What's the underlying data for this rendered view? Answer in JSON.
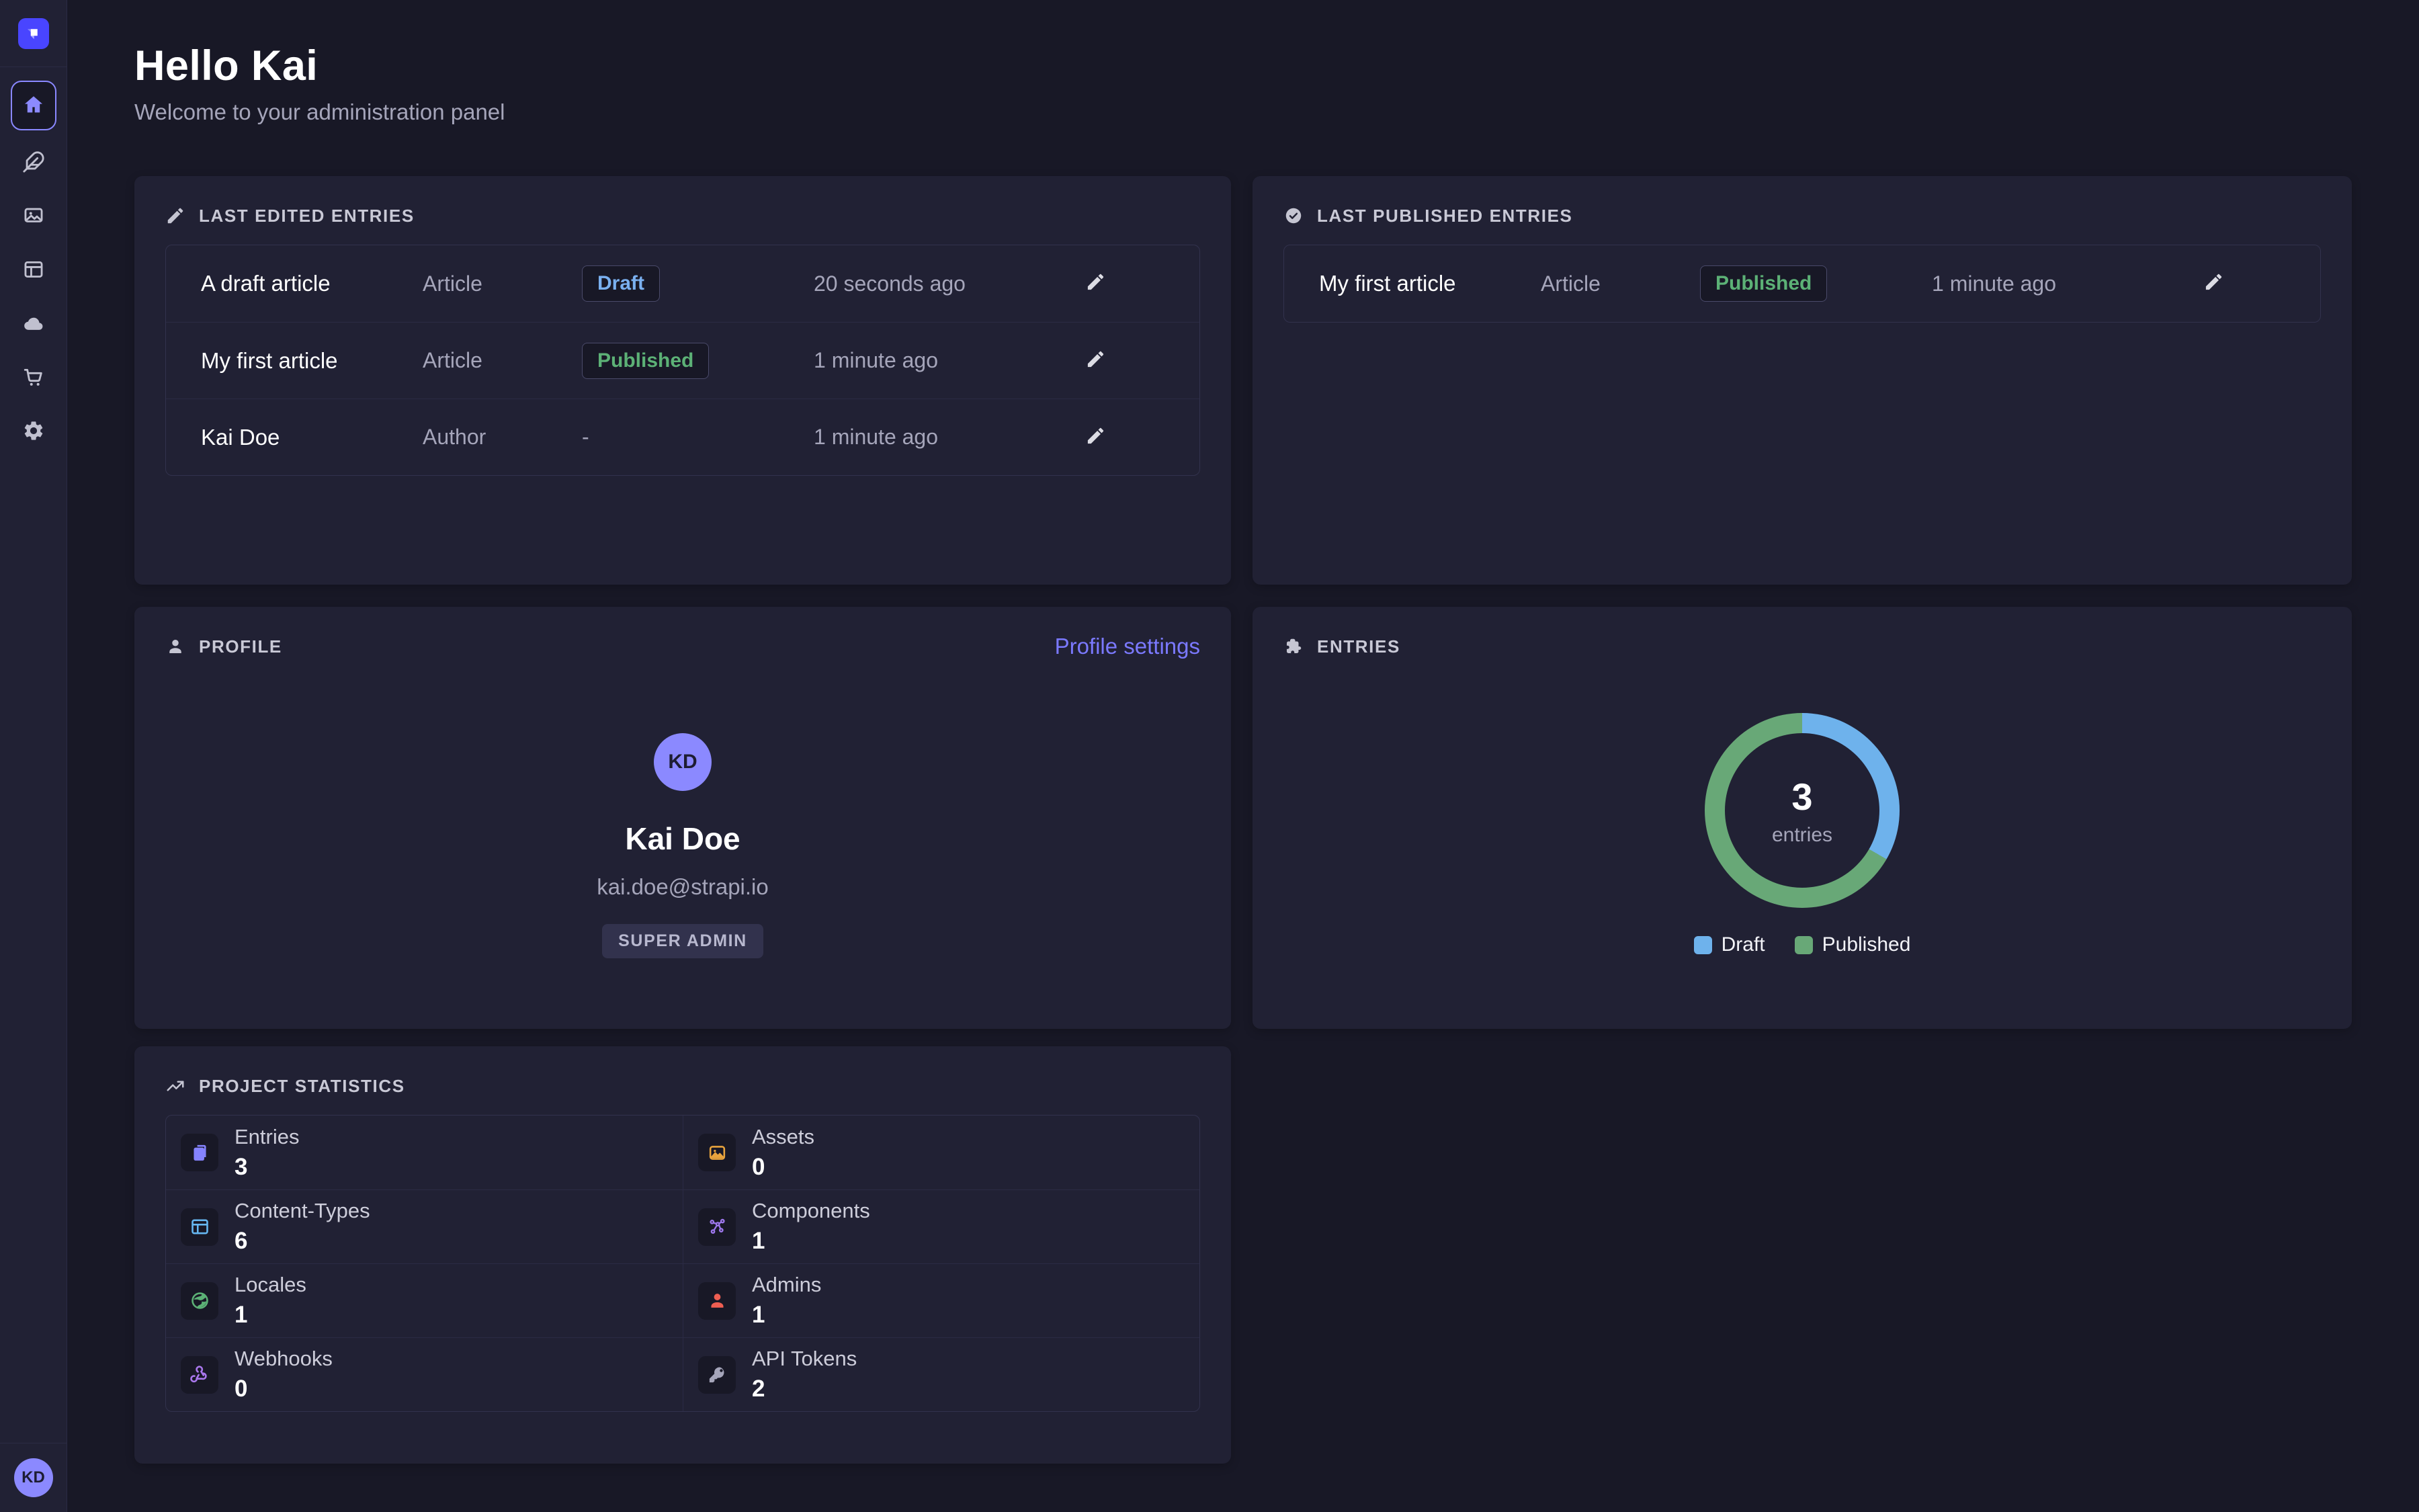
{
  "header": {
    "title": "Hello Kai",
    "subtitle": "Welcome to your administration panel"
  },
  "sidebar": {
    "logo_icon": "strapi-logo-icon",
    "user_initials": "KD",
    "items": [
      {
        "name": "nav-home",
        "icon": "home-icon",
        "state": "active"
      },
      {
        "name": "nav-content-manager",
        "icon": "feather-icon",
        "state": "default"
      },
      {
        "name": "nav-media-library",
        "icon": "images-icon",
        "state": "default"
      },
      {
        "name": "nav-content-type-builder",
        "icon": "layout-icon",
        "state": "default"
      },
      {
        "name": "nav-deploy",
        "icon": "cloud-icon",
        "state": "default"
      },
      {
        "name": "nav-marketplace",
        "icon": "cart-icon",
        "state": "default"
      },
      {
        "name": "nav-settings",
        "icon": "gear-icon",
        "state": "default"
      }
    ]
  },
  "panels": {
    "last_edited": {
      "icon": "pencil-icon",
      "title": "LAST EDITED ENTRIES",
      "rows": [
        {
          "name": "A draft article",
          "type": "Article",
          "status": "Draft",
          "status_kind": "draft",
          "time": "20 seconds ago"
        },
        {
          "name": "My first article",
          "type": "Article",
          "status": "Published",
          "status_kind": "published",
          "time": "1 minute ago"
        },
        {
          "name": "Kai Doe",
          "type": "Author",
          "status": "-",
          "status_kind": "none",
          "time": "1 minute ago"
        }
      ]
    },
    "last_published": {
      "icon": "check-circle-icon",
      "title": "LAST PUBLISHED ENTRIES",
      "rows": [
        {
          "name": "My first article",
          "type": "Article",
          "status": "Published",
          "status_kind": "published",
          "time": "1 minute ago"
        }
      ]
    },
    "profile": {
      "icon": "person-icon",
      "title": "PROFILE",
      "settings_link": "Profile settings",
      "initials": "KD",
      "name": "Kai Doe",
      "email": "kai.doe@strapi.io",
      "role": "SUPER ADMIN"
    },
    "entries": {
      "icon": "puzzle-icon",
      "title": "ENTRIES",
      "legend": [
        {
          "label": "Draft",
          "color": "#6eb2ec"
        },
        {
          "label": "Published",
          "color": "#68a877"
        }
      ]
    },
    "stats": {
      "icon": "trend-up-icon",
      "title": "PROJECT STATISTICS",
      "items": [
        {
          "label": "Entries",
          "value": "3",
          "icon": "pages-icon",
          "color": "#8583ff"
        },
        {
          "label": "Assets",
          "value": "0",
          "icon": "pictures-icon",
          "color": "#e8a33d"
        },
        {
          "label": "Content-Types",
          "value": "6",
          "icon": "layout-icon",
          "color": "#66b7f1"
        },
        {
          "label": "Components",
          "value": "1",
          "icon": "components-icon",
          "color": "#9d77ec"
        },
        {
          "label": "Locales",
          "value": "1",
          "icon": "globe-icon",
          "color": "#5cb176"
        },
        {
          "label": "Admins",
          "value": "1",
          "icon": "user-icon",
          "color": "#ee5e52"
        },
        {
          "label": "Webhooks",
          "value": "0",
          "icon": "webhook-icon",
          "color": "#a977ec"
        },
        {
          "label": "API Tokens",
          "value": "2",
          "icon": "key-icon",
          "color": "#a5a5ba"
        }
      ]
    }
  },
  "chart_data": {
    "type": "pie",
    "title": "ENTRIES",
    "donut": true,
    "center_value": 3,
    "center_label": "entries",
    "categories": [
      "Draft",
      "Published"
    ],
    "values": [
      1,
      2
    ],
    "colors": [
      "#6eb2ec",
      "#68a877"
    ],
    "legend_position": "bottom",
    "start_angle_deg": 0
  },
  "colors": {
    "page_background": "#181826",
    "card_background": "#212134",
    "border": "#32324d",
    "brand": "#4945ff",
    "accent": "#7b79ff",
    "draft_text": "#7ab0ef",
    "published_text": "#5cb176",
    "text_primary": "#ffffff",
    "text_secondary": "#a5a5ba"
  }
}
